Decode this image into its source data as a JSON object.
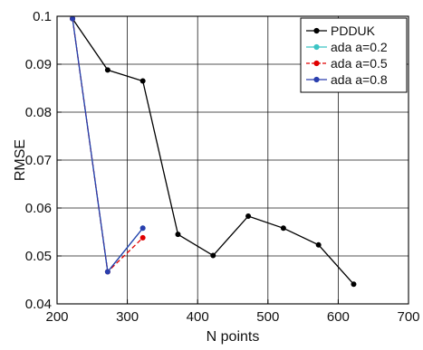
{
  "chart_data": {
    "type": "line",
    "title": "",
    "xlabel": "N points",
    "ylabel": "RMSE",
    "xlim": [
      200,
      700
    ],
    "ylim": [
      0.04,
      0.1
    ],
    "xticks": [
      200,
      300,
      400,
      500,
      600,
      700
    ],
    "yticks": [
      0.04,
      0.05,
      0.06,
      0.07,
      0.08,
      0.09,
      0.1
    ],
    "xtick_labels": [
      "200",
      "300",
      "400",
      "500",
      "600",
      "700"
    ],
    "ytick_labels": [
      "0.04",
      "0.05",
      "0.06",
      "0.07",
      "0.08",
      "0.09",
      "0.1"
    ],
    "grid": true,
    "legend_position": "top-right",
    "series": [
      {
        "name": "PDDUK",
        "color": "#000000",
        "line_style": "solid",
        "x": [
          222,
          272,
          322,
          372,
          422,
          472,
          522,
          572,
          622
        ],
        "y": [
          0.0995,
          0.0888,
          0.0865,
          0.0545,
          0.0501,
          0.0583,
          0.0558,
          0.0523,
          0.0441
        ]
      },
      {
        "name": "ada a=0.2",
        "color": "#3cc4c4",
        "line_style": "solid",
        "x": [
          222,
          272,
          322
        ],
        "y": [
          0.0995,
          0.0467,
          0.0558
        ]
      },
      {
        "name": "ada a=0.5",
        "color": "#e00000",
        "line_style": "dashed",
        "x": [
          222,
          272,
          322
        ],
        "y": [
          0.0995,
          0.0467,
          0.0538
        ]
      },
      {
        "name": "ada a=0.8",
        "color": "#2a3fae",
        "line_style": "solid",
        "x": [
          222,
          272,
          322
        ],
        "y": [
          0.0995,
          0.0467,
          0.0558
        ]
      }
    ]
  }
}
